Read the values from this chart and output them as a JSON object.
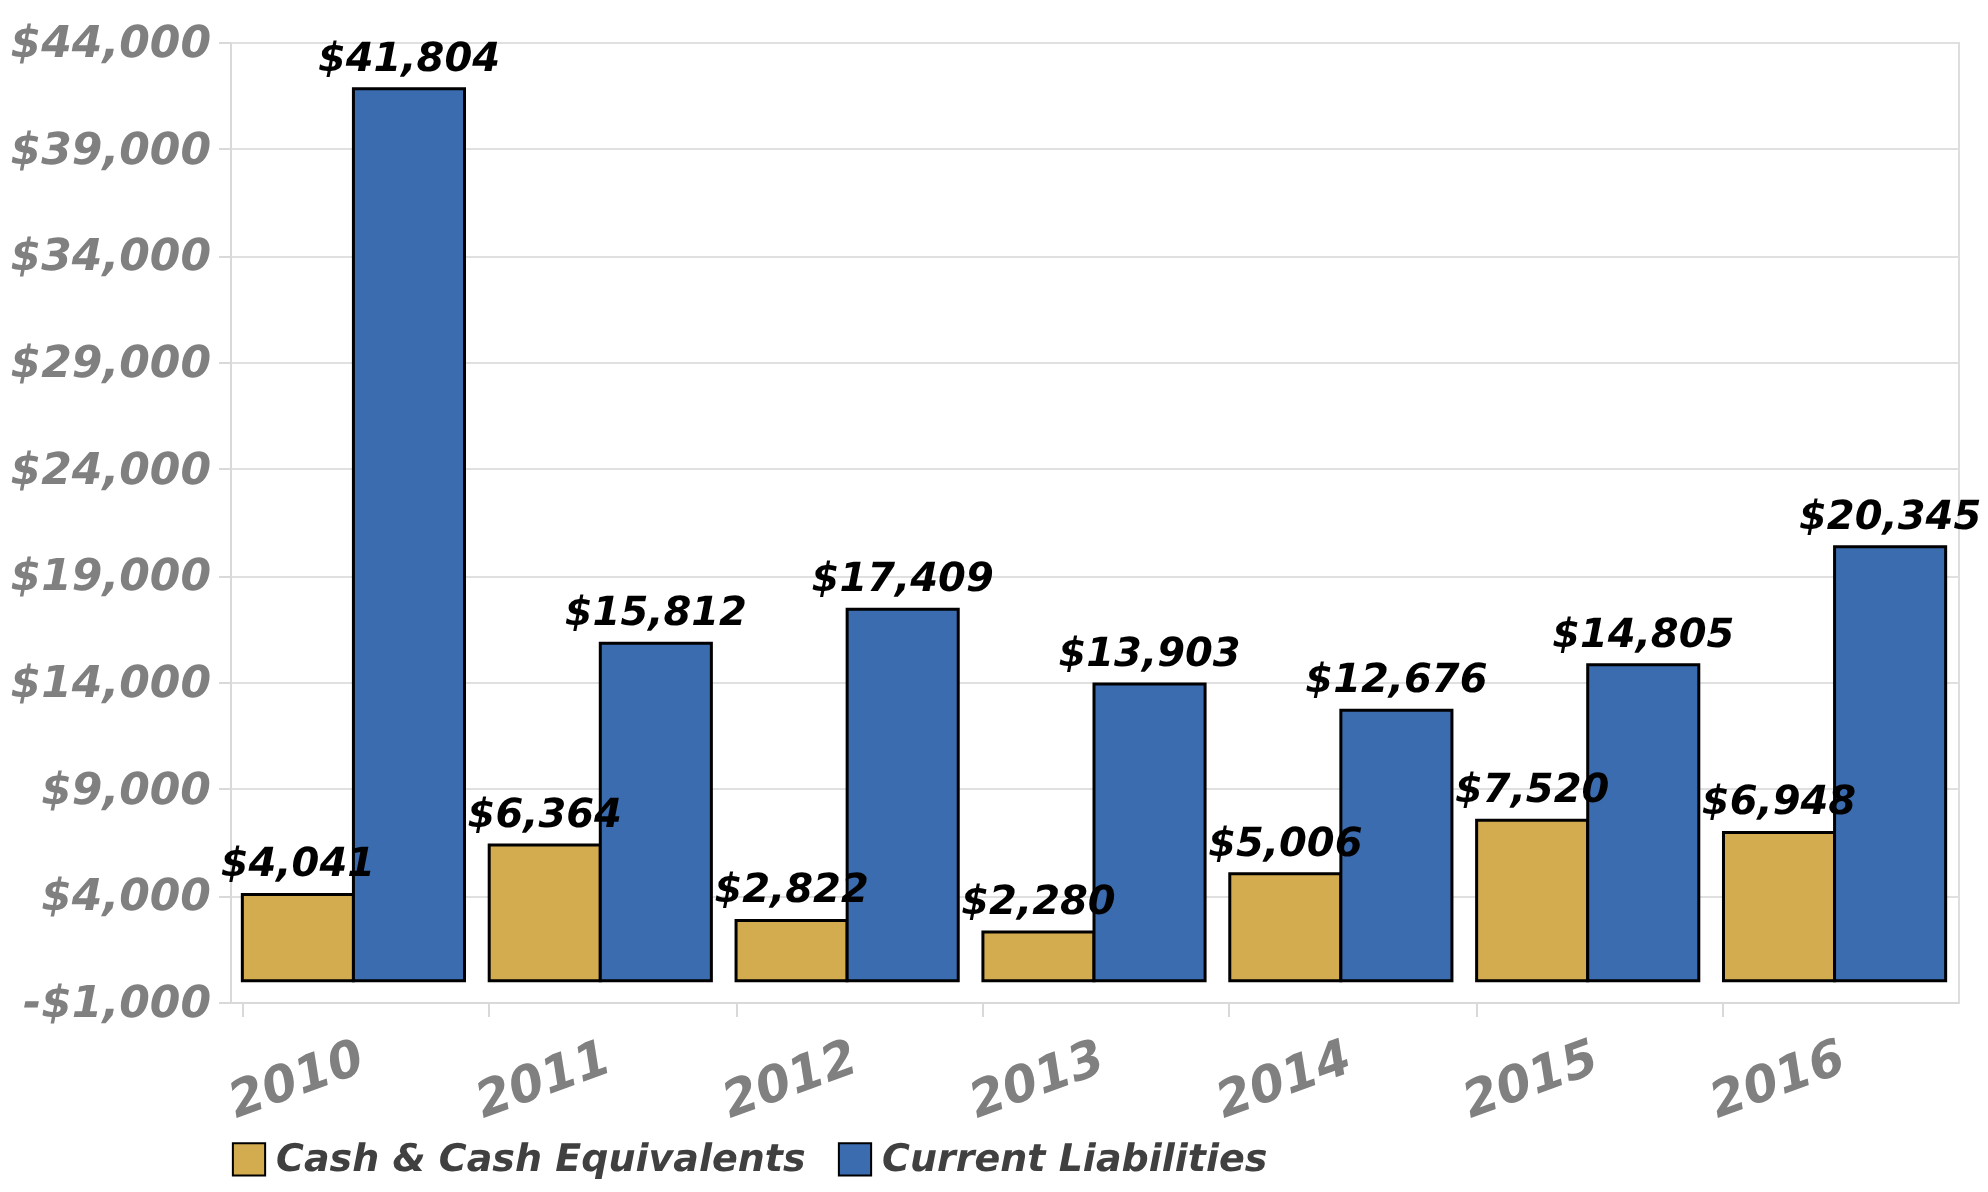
{
  "chart_data": {
    "type": "bar",
    "categories": [
      "2010",
      "2011",
      "2012",
      "2013",
      "2014",
      "2015",
      "2016"
    ],
    "series": [
      {
        "name": "Cash & Cash Equivalents",
        "color": "#d4ac50",
        "values": [
          4041,
          6364,
          2822,
          2280,
          5006,
          7520,
          6948
        ],
        "value_labels": [
          "$4,041",
          "$6,364",
          "$2,822",
          "$2,280",
          "$5,006",
          "$7,520",
          "$6,948"
        ]
      },
      {
        "name": "Current Liabilities",
        "color": "#3b6cb0",
        "values": [
          41804,
          15812,
          17409,
          13903,
          12676,
          14805,
          20345
        ],
        "value_labels": [
          "$41,804",
          "$15,812",
          "$17,409",
          "$13,903",
          "$12,676",
          "$14,805",
          "$20,345"
        ]
      }
    ],
    "ylim": [
      -1000,
      44000
    ],
    "yticks": [
      {
        "value": -1000,
        "label": "-$1,000"
      },
      {
        "value": 4000,
        "label": "$4,000"
      },
      {
        "value": 9000,
        "label": "$9,000"
      },
      {
        "value": 14000,
        "label": "$14,000"
      },
      {
        "value": 19000,
        "label": "$19,000"
      },
      {
        "value": 24000,
        "label": "$24,000"
      },
      {
        "value": 29000,
        "label": "$29,000"
      },
      {
        "value": 34000,
        "label": "$34,000"
      },
      {
        "value": 39000,
        "label": "$39,000"
      },
      {
        "value": 44000,
        "label": "$44,000"
      }
    ],
    "grid": "y",
    "legend": "bottom"
  }
}
